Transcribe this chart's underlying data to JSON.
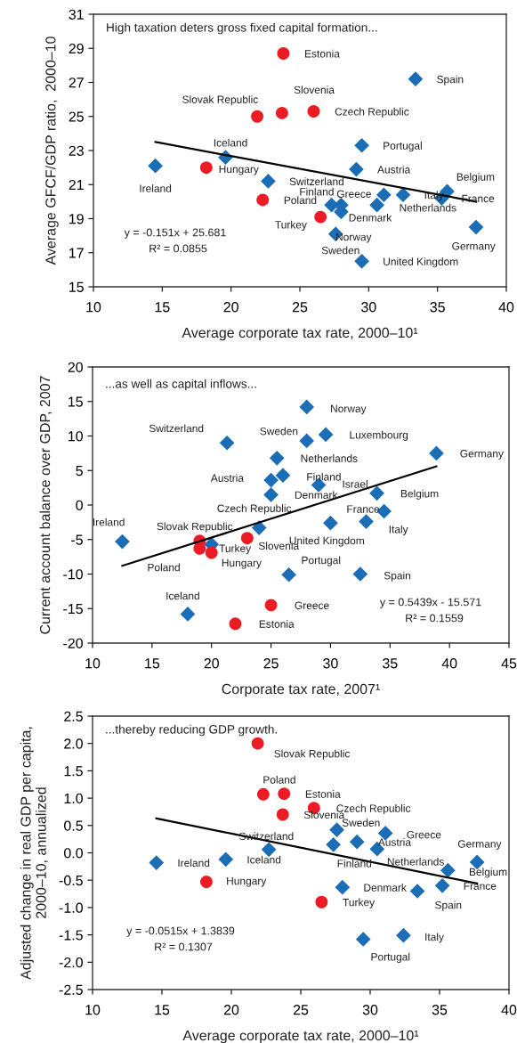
{
  "chart_data": [
    {
      "type": "scatter",
      "xlabel": "Average corporate tax rate, 2000–10¹",
      "ylabel": "Average GFCF/GDP ratio,  2000–10",
      "xlim": [
        10,
        40
      ],
      "xticks": [
        10,
        15,
        20,
        25,
        30,
        35,
        40
      ],
      "ylim": [
        15,
        31
      ],
      "yticks": [
        15,
        17,
        19,
        21,
        23,
        25,
        27,
        29,
        31
      ],
      "series": [
        {
          "type": "scatter",
          "marker": "diamond",
          "color": "#1b6db5",
          "x": [
            14.5,
            19.6,
            33.4,
            29.5,
            29.1,
            22.7,
            31.1,
            32.5,
            35.7,
            35.3,
            30.6,
            27.3,
            28.0,
            28.0,
            27.6,
            37.8,
            29.5
          ],
          "values": [
            22.1,
            22.6,
            27.2,
            23.3,
            21.9,
            21.2,
            20.4,
            20.4,
            20.6,
            20.2,
            19.8,
            19.8,
            19.8,
            19.4,
            18.1,
            18.5,
            16.5
          ]
        },
        {
          "type": "scatter",
          "marker": "circle",
          "color": "#ed1c24",
          "x": [
            23.8,
            21.9,
            23.7,
            26.0,
            18.2,
            22.3,
            26.5
          ],
          "values": [
            28.7,
            25.0,
            25.2,
            25.3,
            22.0,
            20.1,
            19.1
          ]
        },
        {
          "type": "line",
          "marker": "none",
          "line_style": "solid",
          "color": "#000000",
          "x": [
            14.5,
            37.8
          ],
          "values": [
            23.5,
            20.0
          ]
        }
      ],
      "annotations": [
        "High taxation deters gross fixed capital formation...",
        "y = -0.151x + 25.681",
        "R² = 0.0855",
        {
          "text": "Ireland",
          "x": 14.5,
          "y": 22.1
        },
        {
          "text": "Iceland",
          "x": 19.6,
          "y": 22.6
        },
        {
          "text": "Hungary",
          "x": 18.2,
          "y": 22.0
        },
        {
          "text": "Slovak Republic",
          "x": 21.9,
          "y": 25.0
        },
        {
          "text": "Slovenia",
          "x": 23.7,
          "y": 25.2
        },
        {
          "text": "Czech Republic",
          "x": 26.0,
          "y": 25.3
        },
        {
          "text": "Estonia",
          "x": 23.8,
          "y": 28.7
        },
        {
          "text": "Spain",
          "x": 33.4,
          "y": 27.2
        },
        {
          "text": "Portugal",
          "x": 29.5,
          "y": 23.3
        },
        {
          "text": "Austria",
          "x": 29.1,
          "y": 21.9
        },
        {
          "text": "Switzerland",
          "x": 22.7,
          "y": 21.2
        },
        {
          "text": "Poland",
          "x": 22.3,
          "y": 20.1
        },
        {
          "text": "Turkey",
          "x": 26.5,
          "y": 19.1
        },
        {
          "text": "Finland",
          "x": 27.3,
          "y": 19.8
        },
        {
          "text": "Denmark",
          "x": 28.0,
          "y": 19.8
        },
        {
          "text": "Norway",
          "x": 28.0,
          "y": 19.4
        },
        {
          "text": "Sweden",
          "x": 27.6,
          "y": 18.1
        },
        {
          "text": "United Kingdom",
          "x": 29.5,
          "y": 16.5
        },
        {
          "text": "Greece",
          "x": 31.1,
          "y": 20.4
        },
        {
          "text": "Netherlands",
          "x": 30.6,
          "y": 19.8
        },
        {
          "text": "Italy",
          "x": 32.5,
          "y": 20.4
        },
        {
          "text": "France",
          "x": 35.3,
          "y": 20.2
        },
        {
          "text": "Belgium",
          "x": 35.7,
          "y": 20.6
        },
        {
          "text": "Germany",
          "x": 37.8,
          "y": 18.5
        }
      ]
    },
    {
      "type": "scatter",
      "xlabel": "Corporate tax rate, 2007¹",
      "ylabel": "Current account balance over GDP, 2007",
      "xlim": [
        10,
        45
      ],
      "xticks": [
        10,
        15,
        20,
        25,
        30,
        35,
        40,
        45
      ],
      "ylim": [
        -20,
        20
      ],
      "yticks": [
        -20,
        -15,
        -10,
        -5,
        0,
        5,
        10,
        15,
        20
      ],
      "series": [
        {
          "type": "scatter",
          "marker": "diamond",
          "color": "#1b6db5",
          "x": [
            21.3,
            12.5,
            20.0,
            24.0,
            18.0,
            28.0,
            28.0,
            29.6,
            25.5,
            38.9,
            25.0,
            26.0,
            29.0,
            25.0,
            33.9,
            34.5,
            33.0,
            30.0,
            26.5,
            32.5
          ],
          "values": [
            9.0,
            -5.3,
            -5.7,
            -3.3,
            -15.8,
            14.2,
            9.3,
            10.2,
            6.8,
            7.5,
            3.6,
            4.3,
            2.9,
            1.5,
            1.7,
            -0.9,
            -2.4,
            -2.6,
            -10.1,
            -10.0
          ]
        },
        {
          "type": "scatter",
          "marker": "circle",
          "color": "#ed1c24",
          "x": [
            19.0,
            19.0,
            20.0,
            23.0,
            22.0,
            25.0
          ],
          "values": [
            -5.2,
            -6.3,
            -6.9,
            -4.8,
            -17.2,
            -14.5
          ]
        },
        {
          "type": "line",
          "marker": "none",
          "line_style": "solid",
          "color": "#000000",
          "x": [
            12.5,
            38.9
          ],
          "values": [
            -8.8,
            5.6
          ]
        }
      ],
      "annotations": [
        "...as well as capital inflows...",
        "y = 0.5439x - 15.571",
        "R² = 0.1559",
        {
          "text": "Switzerland",
          "x": 21.3,
          "y": 9.0
        },
        {
          "text": "Ireland",
          "x": 12.5,
          "y": -5.3
        },
        {
          "text": "Slovak Republic",
          "x": 19.0,
          "y": -5.2
        },
        {
          "text": "Poland",
          "x": 19.0,
          "y": -6.3
        },
        {
          "text": "Turkey",
          "x": 20.0,
          "y": -5.7
        },
        {
          "text": "Hungary",
          "x": 20.0,
          "y": -6.9
        },
        {
          "text": "Slovenia",
          "x": 23.0,
          "y": -4.8
        },
        {
          "text": "Czech Republic",
          "x": 24.0,
          "y": -3.3
        },
        {
          "text": "Iceland",
          "x": 18.0,
          "y": -15.8
        },
        {
          "text": "Estonia",
          "x": 22.0,
          "y": -17.2
        },
        {
          "text": "Greece",
          "x": 25.0,
          "y": -14.5
        },
        {
          "text": "Norway",
          "x": 28.0,
          "y": 14.2
        },
        {
          "text": "Sweden",
          "x": 28.0,
          "y": 9.3
        },
        {
          "text": "Luxembourg",
          "x": 29.6,
          "y": 10.2
        },
        {
          "text": "Netherlands",
          "x": 25.5,
          "y": 6.8
        },
        {
          "text": "Germany",
          "x": 38.9,
          "y": 7.5
        },
        {
          "text": "Austria",
          "x": 25.0,
          "y": 3.6
        },
        {
          "text": "Finland",
          "x": 26.0,
          "y": 4.3
        },
        {
          "text": "Israel",
          "x": 29.0,
          "y": 2.9
        },
        {
          "text": "Denmark",
          "x": 25.0,
          "y": 1.5
        },
        {
          "text": "Belgium",
          "x": 33.9,
          "y": 1.7
        },
        {
          "text": "France",
          "x": 34.5,
          "y": -0.9
        },
        {
          "text": "Italy",
          "x": 33.0,
          "y": -2.4
        },
        {
          "text": "United Kingdom",
          "x": 30.0,
          "y": -2.6
        },
        {
          "text": "Portugal",
          "x": 26.5,
          "y": -10.1
        },
        {
          "text": "Spain",
          "x": 32.5,
          "y": -10.0
        }
      ]
    },
    {
      "type": "scatter",
      "xlabel": "Average corporate tax rate, 2000–10¹",
      "ylabel": "Adjusted change in real GDP per capita,\n2000–10, annualized",
      "xlim": [
        10,
        40
      ],
      "xticks": [
        10,
        15,
        20,
        25,
        30,
        35,
        40
      ],
      "ylim": [
        -2.5,
        2.5
      ],
      "yticks": [
        {
          "value": -2.5,
          "label": "-2.5"
        },
        {
          "value": -2.0,
          "label": "-2.0"
        },
        {
          "value": -1.5,
          "label": "-1.5"
        },
        {
          "value": -1.0,
          "label": "-1.0"
        },
        {
          "value": -0.5,
          "label": "-0.5"
        },
        {
          "value": 0.0,
          "label": "0.0"
        },
        {
          "value": 0.5,
          "label": "0.5"
        },
        {
          "value": 1.0,
          "label": "1.0"
        },
        {
          "value": 1.5,
          "label": "1.5"
        },
        {
          "value": 2.0,
          "label": "2.0"
        },
        {
          "value": 2.5,
          "label": "2.5"
        }
      ],
      "series": [
        {
          "type": "scatter",
          "marker": "diamond",
          "color": "#1b6db5",
          "x": [
            14.6,
            19.6,
            22.7,
            27.6,
            27.35,
            29.05,
            31.1,
            30.5,
            37.7,
            35.6,
            35.2,
            28.0,
            33.4,
            32.4,
            29.5
          ],
          "values": [
            -0.18,
            -0.12,
            0.06,
            0.42,
            0.15,
            0.2,
            0.36,
            0.07,
            -0.17,
            -0.32,
            -0.6,
            -0.63,
            -0.7,
            -1.51,
            -1.58
          ]
        },
        {
          "type": "scatter",
          "marker": "circle",
          "color": "#ed1c24",
          "x": [
            21.9,
            22.3,
            23.8,
            23.7,
            25.95,
            18.2,
            26.5
          ],
          "values": [
            2.0,
            1.07,
            1.08,
            0.7,
            0.82,
            -0.53,
            -0.9
          ]
        },
        {
          "type": "line",
          "marker": "none",
          "line_style": "solid",
          "color": "#000000",
          "x": [
            14.6,
            37.7
          ],
          "values": [
            0.63,
            -0.56
          ]
        }
      ],
      "annotations": [
        "...thereby reducing GDP growth.",
        "y = -0.0515x + 1.3839",
        "R² = 0.1307",
        {
          "text": "Ireland",
          "x": 14.6,
          "y": -0.18
        },
        {
          "text": "Iceland",
          "x": 19.6,
          "y": -0.12
        },
        {
          "text": "Hungary",
          "x": 18.2,
          "y": -0.53
        },
        {
          "text": "Slovak Republic",
          "x": 21.9,
          "y": 2.0
        },
        {
          "text": "Poland",
          "x": 22.3,
          "y": 1.07
        },
        {
          "text": "Estonia",
          "x": 23.8,
          "y": 1.08
        },
        {
          "text": "Slovenia",
          "x": 23.7,
          "y": 0.7
        },
        {
          "text": "Czech Republic",
          "x": 25.95,
          "y": 0.82
        },
        {
          "text": "Turkey",
          "x": 26.5,
          "y": -0.9
        },
        {
          "text": "Switzerland",
          "x": 22.7,
          "y": 0.06
        },
        {
          "text": "Sweden",
          "x": 27.6,
          "y": 0.42
        },
        {
          "text": "Finland",
          "x": 27.35,
          "y": 0.15
        },
        {
          "text": "Austria",
          "x": 29.05,
          "y": 0.2
        },
        {
          "text": "Greece",
          "x": 31.1,
          "y": 0.36
        },
        {
          "text": "Netherlands",
          "x": 30.5,
          "y": 0.07
        },
        {
          "text": "Germany",
          "x": 37.7,
          "y": -0.17
        },
        {
          "text": "Belgium",
          "x": 35.6,
          "y": -0.32
        },
        {
          "text": "France",
          "x": 35.2,
          "y": -0.6
        },
        {
          "text": "Denmark",
          "x": 28.0,
          "y": -0.63
        },
        {
          "text": "Spain",
          "x": 33.4,
          "y": -0.7
        },
        {
          "text": "Italy",
          "x": 32.4,
          "y": -1.51
        },
        {
          "text": "Portugal",
          "x": 29.5,
          "y": -1.58
        }
      ]
    }
  ]
}
